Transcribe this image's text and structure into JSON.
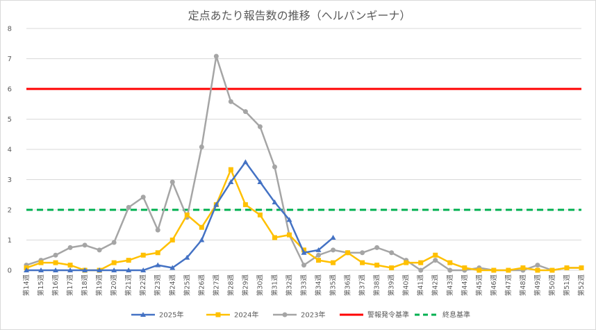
{
  "chart_data": {
    "type": "line",
    "title": "定点あたり報告数の推移（ヘルパンギーナ）",
    "xlabel": "",
    "ylabel": "",
    "ylim": [
      0,
      8
    ],
    "yticks": [
      0,
      1,
      2,
      3,
      4,
      5,
      6,
      7,
      8
    ],
    "grid": true,
    "legend_position": "bottom",
    "categories": [
      "第14週",
      "第15週",
      "第16週",
      "第17週",
      "第18週",
      "第19週",
      "第20週",
      "第21週",
      "第22週",
      "第23週",
      "第24週",
      "第25週",
      "第26週",
      "第27週",
      "第28週",
      "第29週",
      "第30週",
      "第31週",
      "第32週",
      "第33週",
      "第34週",
      "第35週",
      "第36週",
      "第37週",
      "第38週",
      "第39週",
      "第40週",
      "第41週",
      "第42週",
      "第43週",
      "第44週",
      "第45週",
      "第46週",
      "第47週",
      "第48週",
      "第49週",
      "第50週",
      "第51週",
      "第52週"
    ],
    "series": [
      {
        "name": "2025年",
        "color": "#4472c4",
        "marker": "triangle",
        "values": [
          0.0,
          0.0,
          0.0,
          0.0,
          0.0,
          0.0,
          0.0,
          0.0,
          0.0,
          0.17,
          0.08,
          0.42,
          1.0,
          2.17,
          2.92,
          3.58,
          2.92,
          2.25,
          1.67,
          0.58,
          0.67,
          1.08,
          null,
          null,
          null,
          null,
          null,
          null,
          null,
          null,
          null,
          null,
          null,
          null,
          null,
          null,
          null,
          null,
          null
        ]
      },
      {
        "name": "2024年",
        "color": "#ffc000",
        "marker": "square",
        "values": [
          0.08,
          0.25,
          0.25,
          0.17,
          0.0,
          0.0,
          0.25,
          0.33,
          0.5,
          0.58,
          1.0,
          1.83,
          1.42,
          2.17,
          3.33,
          2.17,
          1.83,
          1.08,
          1.17,
          0.67,
          0.33,
          0.25,
          0.58,
          0.25,
          0.17,
          0.08,
          0.25,
          0.25,
          0.5,
          0.25,
          0.08,
          0.0,
          0.0,
          0.0,
          0.08,
          0.0,
          0.0,
          0.08,
          0.08
        ]
      },
      {
        "name": "2023年",
        "color": "#a5a5a5",
        "marker": "circle",
        "values": [
          0.17,
          0.33,
          0.5,
          0.75,
          0.83,
          0.67,
          0.92,
          2.08,
          2.42,
          1.33,
          2.92,
          1.75,
          4.08,
          7.08,
          5.58,
          5.25,
          4.75,
          3.42,
          1.17,
          0.17,
          0.5,
          0.67,
          0.58,
          0.58,
          0.75,
          0.58,
          0.33,
          0.0,
          0.33,
          0.0,
          0.0,
          0.08,
          0.0,
          0.0,
          0.0,
          0.17,
          0.0,
          0.08,
          0.08
        ]
      }
    ],
    "reference_lines": [
      {
        "name": "警報発令基準",
        "value": 6,
        "color": "#ff0000",
        "style": "solid"
      },
      {
        "name": "終息基準",
        "value": 2,
        "color": "#00b050",
        "style": "dashed"
      }
    ]
  }
}
